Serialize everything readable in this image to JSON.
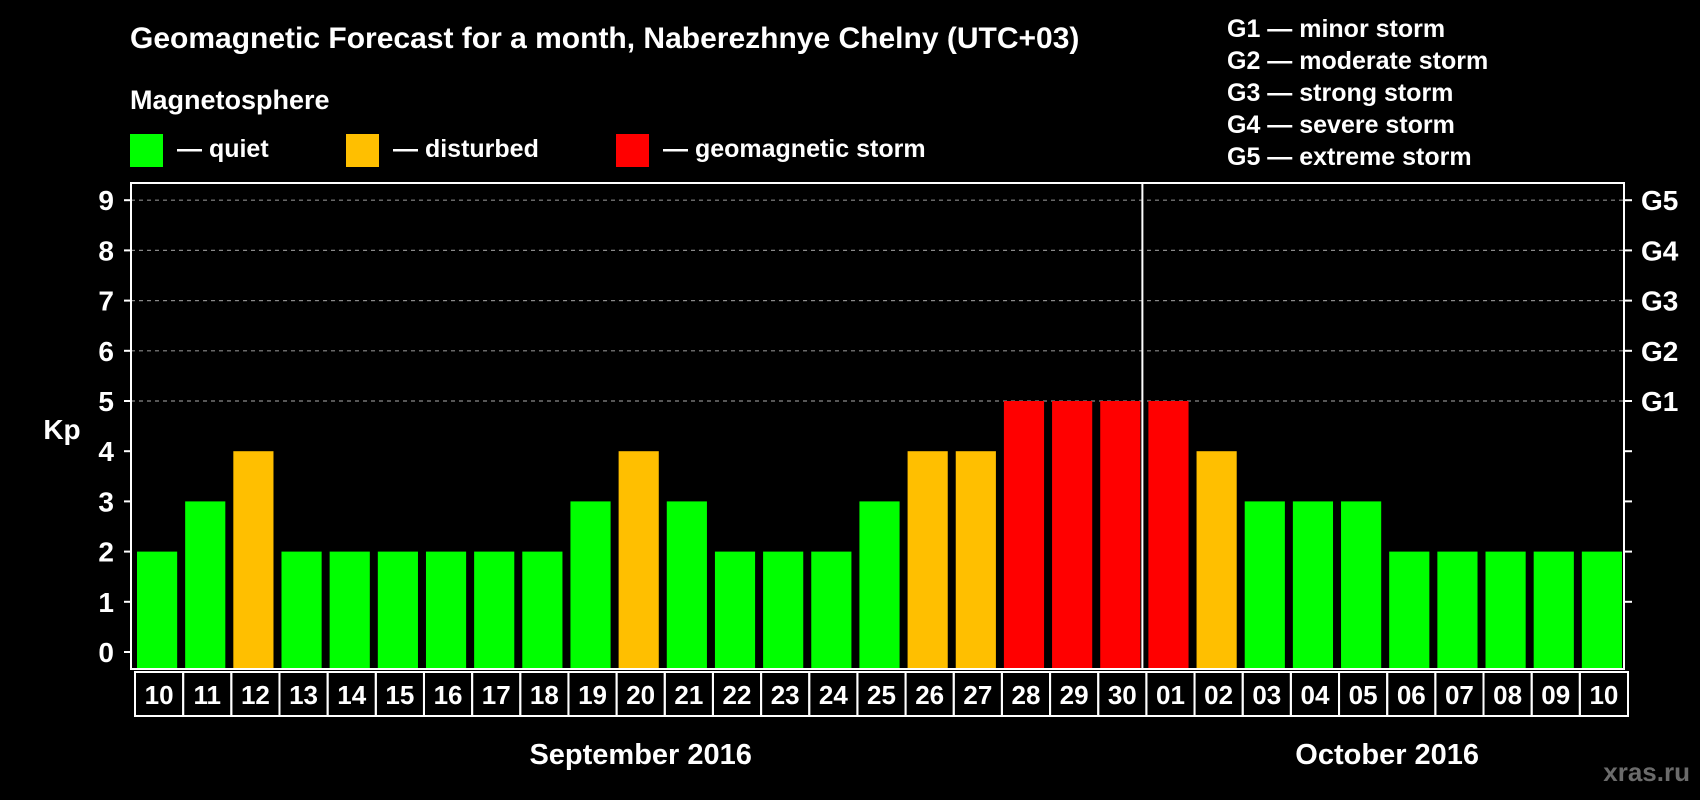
{
  "title": "Geomagnetic Forecast for a month, Naberezhnye Chelny (UTC+03)",
  "legend_heading": "Magnetosphere",
  "legend": [
    {
      "label": "— quiet",
      "color": "#00ff00"
    },
    {
      "label": "— disturbed",
      "color": "#ffbf00"
    },
    {
      "label": "— geomagnetic storm",
      "color": "#ff0000"
    }
  ],
  "storm_scale": [
    "G1 — minor storm",
    "G2 — moderate storm",
    "G3 — strong storm",
    "G4 — severe storm",
    "G5 — extreme storm"
  ],
  "watermark": "xras.ru",
  "chart_data": {
    "type": "bar",
    "ylabel": "Kp",
    "ylim": [
      0,
      9
    ],
    "yticks": [
      "0",
      "1",
      "2",
      "3",
      "4",
      "5",
      "6",
      "7",
      "8",
      "9"
    ],
    "right_ticks": [
      {
        "value": 5,
        "label": "G1"
      },
      {
        "value": 6,
        "label": "G2"
      },
      {
        "value": 7,
        "label": "G3"
      },
      {
        "value": 8,
        "label": "G4"
      },
      {
        "value": 9,
        "label": "G5"
      }
    ],
    "grid": "dashed horizontal at 5-9",
    "months": [
      {
        "label": "September 2016",
        "first_index": 0,
        "last_index": 20
      },
      {
        "label": "October 2016",
        "first_index": 21,
        "last_index": 30
      }
    ],
    "month_divider_after_index": 20,
    "categories": [
      "10",
      "11",
      "12",
      "13",
      "14",
      "15",
      "16",
      "17",
      "18",
      "19",
      "20",
      "21",
      "22",
      "23",
      "24",
      "25",
      "26",
      "27",
      "28",
      "29",
      "30",
      "01",
      "02",
      "03",
      "04",
      "05",
      "06",
      "07",
      "08",
      "09",
      "10"
    ],
    "values": [
      2,
      3,
      4,
      2,
      2,
      2,
      2,
      2,
      2,
      3,
      4,
      3,
      2,
      2,
      2,
      3,
      4,
      4,
      5,
      5,
      5,
      5,
      4,
      3,
      3,
      3,
      2,
      2,
      2,
      2,
      2
    ],
    "colors": {
      "quiet": "#00ff00",
      "disturbed": "#ffbf00",
      "storm": "#ff0000"
    },
    "thresholds": {
      "disturbed": 4,
      "storm": 5
    }
  }
}
